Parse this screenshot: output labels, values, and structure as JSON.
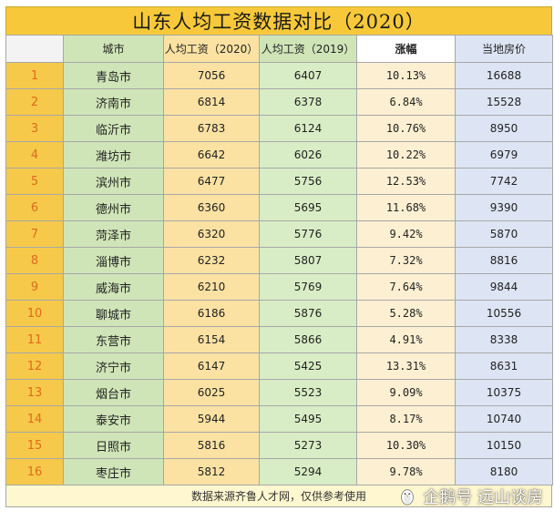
{
  "title": "山东人均工资数据对比（2020）",
  "headers": [
    "",
    "城市",
    "人均工资（2020）",
    "人均工资（2019）",
    "涨幅",
    "当地房价"
  ],
  "rows": [
    [
      "1",
      "青岛市",
      "7056",
      "6407",
      "10.13%",
      "16688"
    ],
    [
      "2",
      "济南市",
      "6814",
      "6378",
      "6.84%",
      "15528"
    ],
    [
      "3",
      "临沂市",
      "6783",
      "6124",
      "10.76%",
      "8950"
    ],
    [
      "4",
      "潍坊市",
      "6642",
      "6026",
      "10.22%",
      "6979"
    ],
    [
      "5",
      "滨州市",
      "6477",
      "5756",
      "12.53%",
      "7742"
    ],
    [
      "6",
      "德州市",
      "6360",
      "5695",
      "11.68%",
      "9390"
    ],
    [
      "7",
      "菏泽市",
      "6320",
      "5776",
      "9.42%",
      "5870"
    ],
    [
      "8",
      "淄博市",
      "6232",
      "5807",
      "7.32%",
      "8816"
    ],
    [
      "9",
      "威海市",
      "6210",
      "5769",
      "7.64%",
      "9844"
    ],
    [
      "10",
      "聊城市",
      "6186",
      "5876",
      "5.28%",
      "10556"
    ],
    [
      "11",
      "东营市",
      "6154",
      "5866",
      "4.91%",
      "8338"
    ],
    [
      "12",
      "济宁市",
      "6147",
      "5425",
      "13.31%",
      "8631"
    ],
    [
      "13",
      "烟台市",
      "6025",
      "5523",
      "9.09%",
      "10375"
    ],
    [
      "14",
      "泰安市",
      "5944",
      "5495",
      "8.17%",
      "10740"
    ],
    [
      "15",
      "日照市",
      "5816",
      "5273",
      "10.30%",
      "10150"
    ],
    [
      "16",
      "枣庄市",
      "5812",
      "5294",
      "9.78%",
      "8180"
    ]
  ],
  "footer": "数据来源齐鲁人才网，仅供参考使用",
  "watermark": {
    "text": "企鹅号 远山谈房",
    "icon": "penguin-icon"
  }
}
